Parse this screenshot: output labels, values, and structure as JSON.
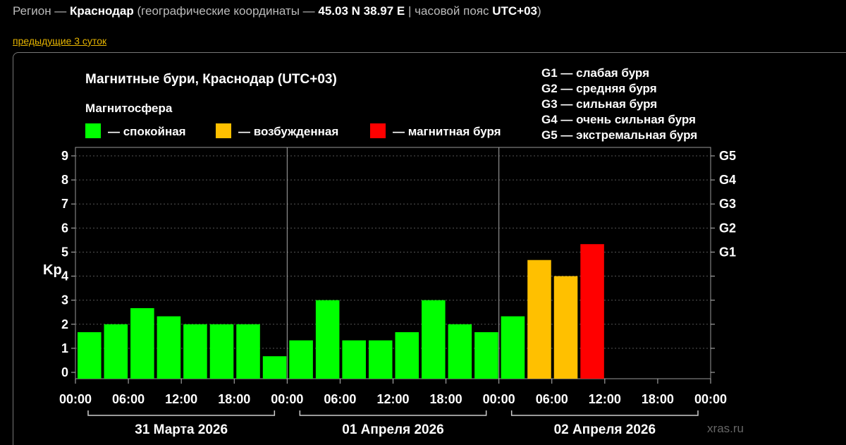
{
  "header": {
    "region_prefix": "Регион —",
    "city": "Краснодар",
    "coords_prefix": "(географические координаты —",
    "coords": "45.03 N 38.97 E",
    "tz_prefix": "| часовой пояс",
    "tz": "UTC+03",
    "tz_suffix": ")"
  },
  "prev_link": "предыдущие 3 суток",
  "colors": {
    "calm": "#00ff00",
    "excited": "#ffc000",
    "storm": "#ff0000"
  },
  "chart_data": {
    "type": "bar",
    "title": "Магнитные бури, Краснодар (UTC+03)",
    "legend_title": "Магнитосфера",
    "legend": [
      {
        "label": "— спокойная",
        "color": "#00ff00"
      },
      {
        "label": "— возбужденная",
        "color": "#ffc000"
      },
      {
        "label": "— магнитная буря",
        "color": "#ff0000"
      }
    ],
    "g_legend": [
      "G1 — слабая буря",
      "G2 — средняя буря",
      "G3 — сильная буря",
      "G4 — очень сильная буря",
      "G5 — экстремальная буря"
    ],
    "ylabel": "Kp",
    "ylim": [
      0,
      9
    ],
    "yticks": [
      "0",
      "1",
      "2",
      "3",
      "4",
      "5",
      "6",
      "7",
      "8",
      "9"
    ],
    "right_ticks": [
      {
        "label": "G1",
        "value": 5
      },
      {
        "label": "G2",
        "value": 6
      },
      {
        "label": "G3",
        "value": 7
      },
      {
        "label": "G4",
        "value": 8
      },
      {
        "label": "G5",
        "value": 9
      }
    ],
    "xticks": [
      "00:00",
      "06:00",
      "12:00",
      "18:00",
      "00:00",
      "06:00",
      "12:00",
      "18:00",
      "00:00",
      "06:00",
      "12:00",
      "18:00",
      "00:00"
    ],
    "days": [
      "31 Марта 2026",
      "01 Апреля 2026",
      "02 Апреля 2026"
    ],
    "values": [
      1.67,
      2.0,
      2.67,
      2.33,
      2.0,
      2.0,
      2.0,
      0.67,
      1.33,
      3.0,
      1.33,
      1.33,
      1.67,
      3.0,
      2.0,
      1.67,
      2.33,
      4.67,
      4.0,
      5.33
    ],
    "bar_colors": [
      "calm",
      "calm",
      "calm",
      "calm",
      "calm",
      "calm",
      "calm",
      "calm",
      "calm",
      "calm",
      "calm",
      "calm",
      "calm",
      "calm",
      "calm",
      "calm",
      "calm",
      "excited",
      "excited",
      "storm"
    ],
    "grid": true,
    "watermark": "xras.ru"
  }
}
